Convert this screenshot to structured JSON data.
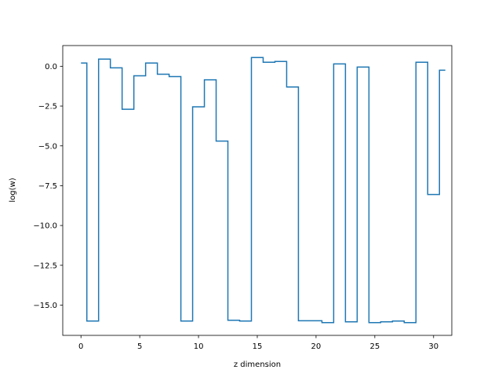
{
  "chart_data": {
    "type": "line",
    "drawstyle": "steps-mid",
    "title": "",
    "xlabel": "z dimension",
    "ylabel": "log(w)",
    "xlim": [
      -1.55,
      31.55
    ],
    "ylim": [
      -16.9,
      1.3
    ],
    "xticks": [
      0,
      5,
      10,
      15,
      20,
      25,
      30
    ],
    "yticks": [
      0.0,
      -2.5,
      -5.0,
      -7.5,
      -10.0,
      -12.5,
      -15.0
    ],
    "ytick_labels": [
      "0.0",
      "−2.5",
      "−5.0",
      "−7.5",
      "−10.0",
      "−12.5",
      "−15.0"
    ],
    "grid": false,
    "series": [
      {
        "color": "#1f77b4",
        "x": [
          0,
          1,
          2,
          3,
          4,
          5,
          6,
          7,
          8,
          9,
          10,
          11,
          12,
          13,
          14,
          15,
          16,
          17,
          18,
          19,
          20,
          21,
          22,
          23,
          24,
          25,
          26,
          27,
          28,
          29,
          30,
          31
        ],
        "y": [
          0.2,
          -16.0,
          0.45,
          -0.1,
          -2.7,
          -0.6,
          0.2,
          -0.5,
          -0.65,
          -16.0,
          -2.55,
          -0.85,
          -4.7,
          -15.95,
          -16.0,
          0.55,
          0.25,
          0.3,
          -1.3,
          -15.98,
          -15.98,
          -16.1,
          0.15,
          -16.05,
          -0.05,
          -16.1,
          -16.05,
          -16.0,
          -16.1,
          0.25,
          -8.05,
          -0.25
        ]
      }
    ]
  }
}
